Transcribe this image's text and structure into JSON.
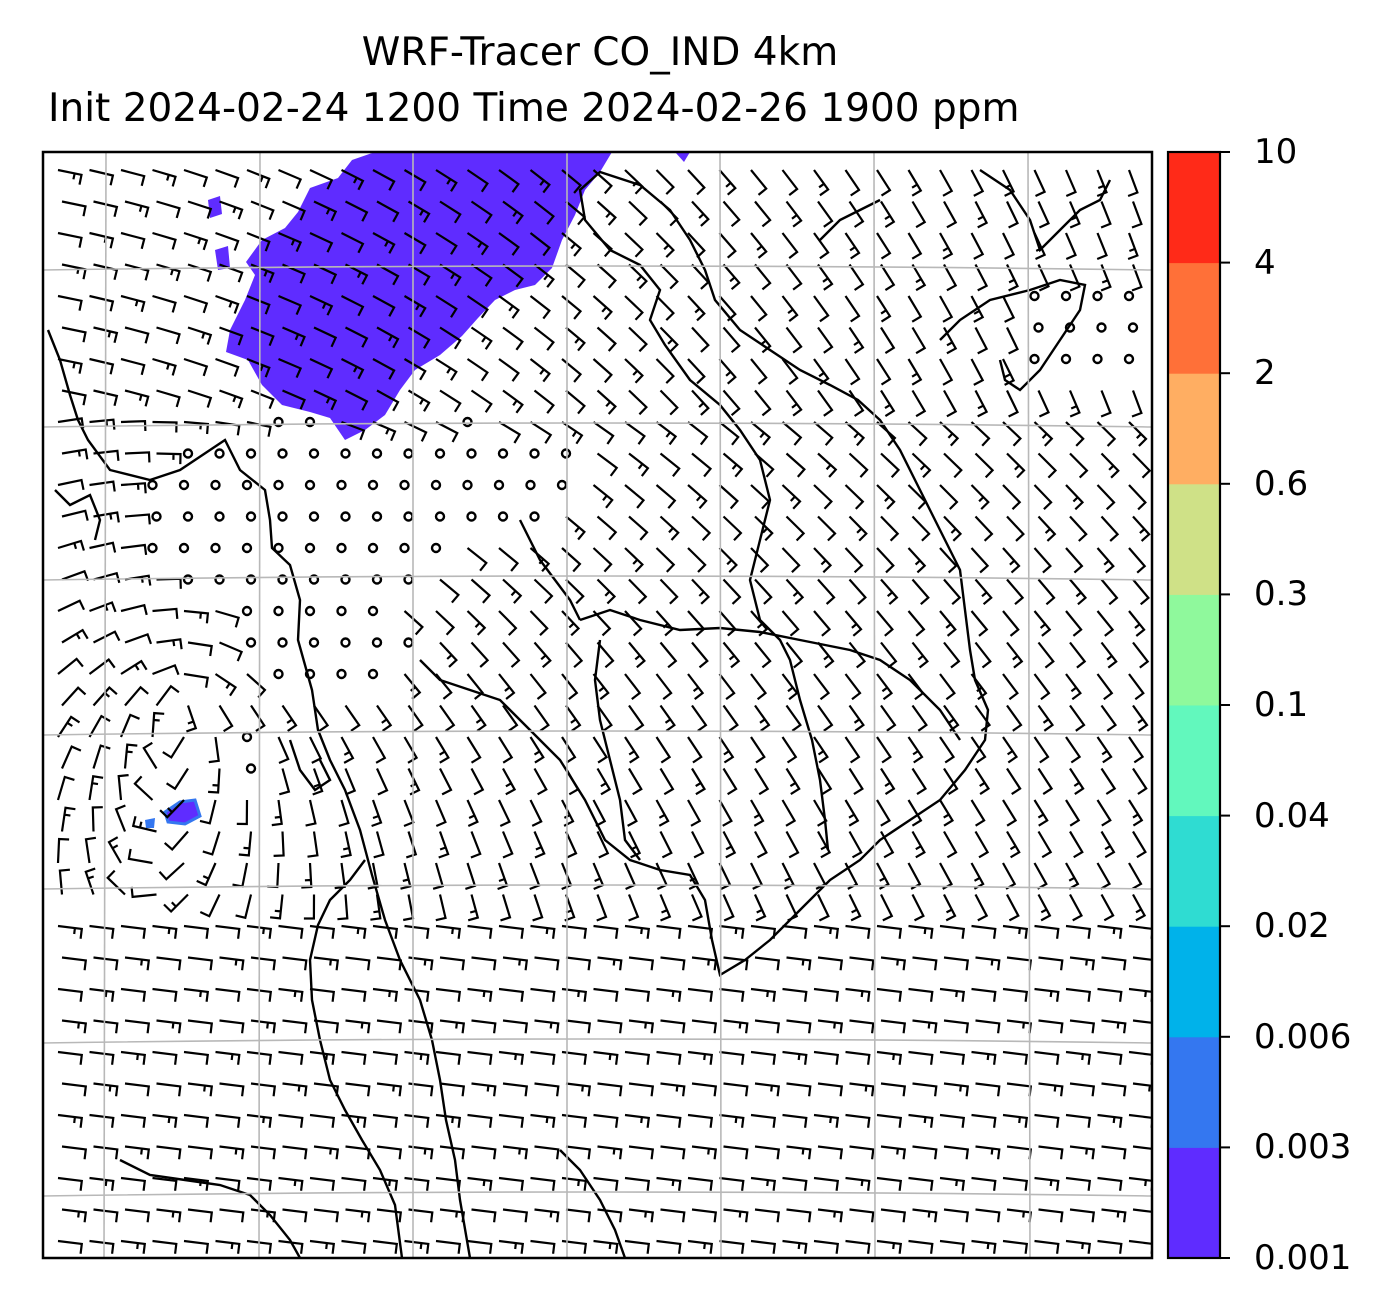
{
  "title": {
    "line1": "WRF-Tracer CO_IND 4km",
    "line2": "Init 2024-02-24 1200 Time 2024-02-26 1900 ppm"
  },
  "colorbar": {
    "levels": [
      "0.001",
      "0.003",
      "0.006",
      "0.02",
      "0.04",
      "0.1",
      "0.3",
      "0.6",
      "2",
      "4",
      "10"
    ],
    "colors": [
      "#5f2cff",
      "#3477f0",
      "#00b2ea",
      "#2fdcd2",
      "#62f8bd",
      "#8ff99c",
      "#cfe187",
      "#ffae62",
      "#ff7038",
      "#ff2a18"
    ]
  },
  "map": {
    "grid": true,
    "plume_color": "#5f2cff",
    "calm_marker": "circle",
    "wind_field": "barbs"
  }
}
